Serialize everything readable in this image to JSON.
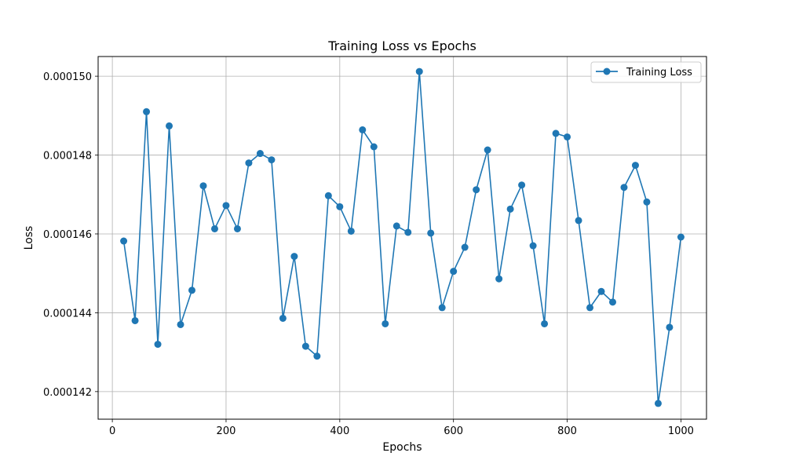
{
  "chart_data": {
    "type": "line",
    "title": "Training Loss vs Epochs",
    "xlabel": "Epochs",
    "ylabel": "Loss",
    "xlim": [
      -25,
      1045
    ],
    "ylim": [
      0.0001413,
      0.0001505
    ],
    "xticks": [
      0,
      200,
      400,
      600,
      800,
      1000
    ],
    "yticks": [
      0.000142,
      0.000144,
      0.000146,
      0.000148,
      0.00015
    ],
    "xtick_labels": [
      "0",
      "200",
      "400",
      "600",
      "800",
      "1000"
    ],
    "ytick_labels": [
      "0.000142",
      "0.000144",
      "0.000146",
      "0.000148",
      "0.000150"
    ],
    "grid": true,
    "legend_position": "top-right",
    "colors": {
      "series": "#1f77b4",
      "grid": "#b0b0b0"
    },
    "series": [
      {
        "name": "Training Loss",
        "marker": "circle",
        "x": [
          20,
          40,
          60,
          80,
          100,
          120,
          140,
          160,
          180,
          200,
          220,
          240,
          260,
          280,
          300,
          320,
          340,
          360,
          380,
          400,
          420,
          440,
          460,
          480,
          500,
          520,
          540,
          560,
          580,
          600,
          620,
          640,
          660,
          680,
          700,
          720,
          740,
          760,
          780,
          800,
          820,
          840,
          860,
          880,
          900,
          920,
          940,
          960,
          980,
          1000
        ],
        "values": [
          0.00014582,
          0.0001438,
          0.0001491,
          0.0001432,
          0.00014874,
          0.0001437,
          0.00014457,
          0.00014722,
          0.00014613,
          0.00014672,
          0.00014613,
          0.0001478,
          0.00014804,
          0.00014788,
          0.00014386,
          0.00014543,
          0.00014315,
          0.0001429,
          0.00014697,
          0.00014669,
          0.00014607,
          0.00014864,
          0.00014821,
          0.00014372,
          0.0001462,
          0.00014604,
          0.00015012,
          0.00014602,
          0.00014413,
          0.00014505,
          0.00014566,
          0.00014712,
          0.00014813,
          0.00014486,
          0.00014663,
          0.00014724,
          0.0001457,
          0.00014372,
          0.00014855,
          0.00014846,
          0.00014634,
          0.00014413,
          0.00014454,
          0.00014427,
          0.00014718,
          0.00014774,
          0.00014681,
          0.0001417,
          0.00014363,
          0.00014592
        ]
      }
    ]
  }
}
